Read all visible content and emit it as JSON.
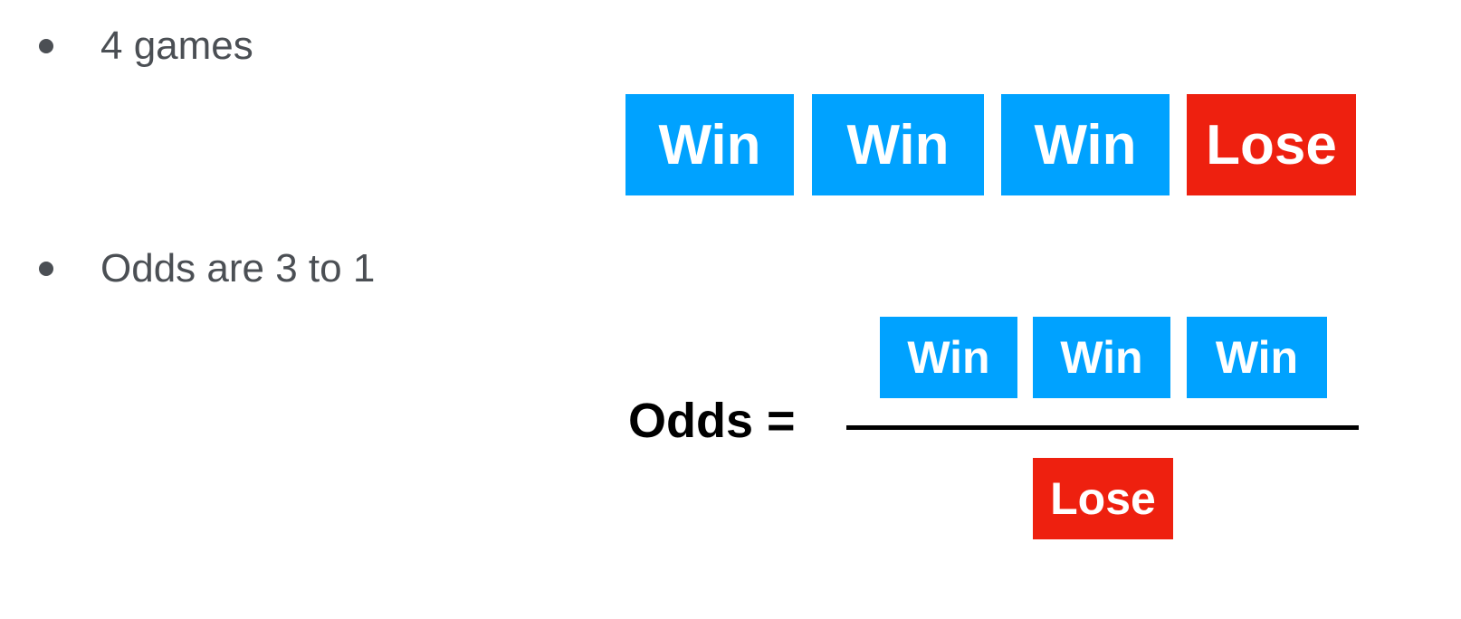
{
  "bullets": [
    {
      "text": "4 games"
    },
    {
      "text": "Odds are 3 to 1"
    }
  ],
  "games_row": [
    {
      "label": "Win",
      "outcome": "win"
    },
    {
      "label": "Win",
      "outcome": "win"
    },
    {
      "label": "Win",
      "outcome": "win"
    },
    {
      "label": "Lose",
      "outcome": "lose"
    }
  ],
  "equation": {
    "lhs": "Odds =",
    "numerator": [
      "Win",
      "Win",
      "Win"
    ],
    "denominator": [
      "Lose"
    ]
  },
  "colors": {
    "win": "#00a2ff",
    "lose": "#ee200f",
    "bullet_text": "#4b4f54"
  }
}
